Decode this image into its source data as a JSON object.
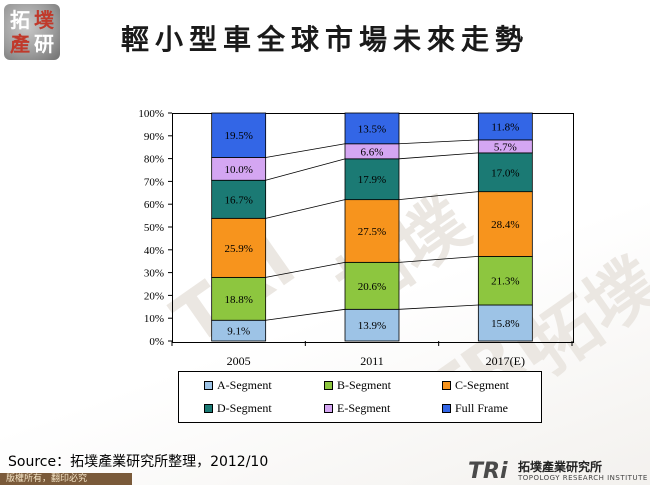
{
  "header": {
    "logo_chars": [
      "拓",
      "墣",
      "產",
      "研"
    ],
    "title": "輕小型車全球市場未來走勢"
  },
  "watermark": {
    "text": "TRI",
    "text2": "拓墣"
  },
  "chart_data": {
    "type": "bar",
    "stacked": true,
    "percent": true,
    "title": "輕小型車全球市場未來走勢",
    "categories": [
      "2005",
      "2011",
      "2017(E)"
    ],
    "y_ticks": [
      "0%",
      "10%",
      "20%",
      "30%",
      "40%",
      "50%",
      "60%",
      "70%",
      "80%",
      "90%",
      "100%"
    ],
    "ylim": [
      0,
      100
    ],
    "series": [
      {
        "name": "A-Segment",
        "color": "#9DC3E6",
        "values": [
          9.1,
          13.9,
          15.8
        ],
        "labels": [
          "9.1%",
          "13.9%",
          "15.8%"
        ]
      },
      {
        "name": "B-Segment",
        "color": "#8DC63F",
        "values": [
          18.8,
          20.6,
          21.3
        ],
        "labels": [
          "18.8%",
          "20.6%",
          "21.3%"
        ]
      },
      {
        "name": "C-Segment",
        "color": "#F7941D",
        "values": [
          25.9,
          27.5,
          28.4
        ],
        "labels": [
          "25.9%",
          "27.5%",
          "28.4%"
        ]
      },
      {
        "name": "D-Segment",
        "color": "#1B7A74",
        "values": [
          16.7,
          17.9,
          17.0
        ],
        "labels": [
          "16.7%",
          "17.9%",
          "17.0%"
        ]
      },
      {
        "name": "E-Segment",
        "color": "#D4A6F2",
        "values": [
          10.0,
          6.6,
          5.7
        ],
        "labels": [
          "10.0%",
          "6.6%",
          "5.7%"
        ]
      },
      {
        "name": "Full Frame",
        "color": "#3366E6",
        "values": [
          19.5,
          13.5,
          11.8
        ],
        "labels": [
          "19.5%",
          "13.5%",
          "11.8%"
        ]
      }
    ],
    "legend": [
      "A-Segment",
      "B-Segment",
      "C-Segment",
      "D-Segment",
      "E-Segment",
      "Full Frame"
    ],
    "legend_position": "bottom"
  },
  "footer": {
    "source": "Source：拓墣產業研究所整理，2012/10",
    "copyright": "版權所有，翻印必究",
    "brand_mark": "TRi",
    "brand_name": "拓墣產業研究所",
    "brand_sub": "TOPOLOGY RESEARCH INSTITUTE"
  }
}
